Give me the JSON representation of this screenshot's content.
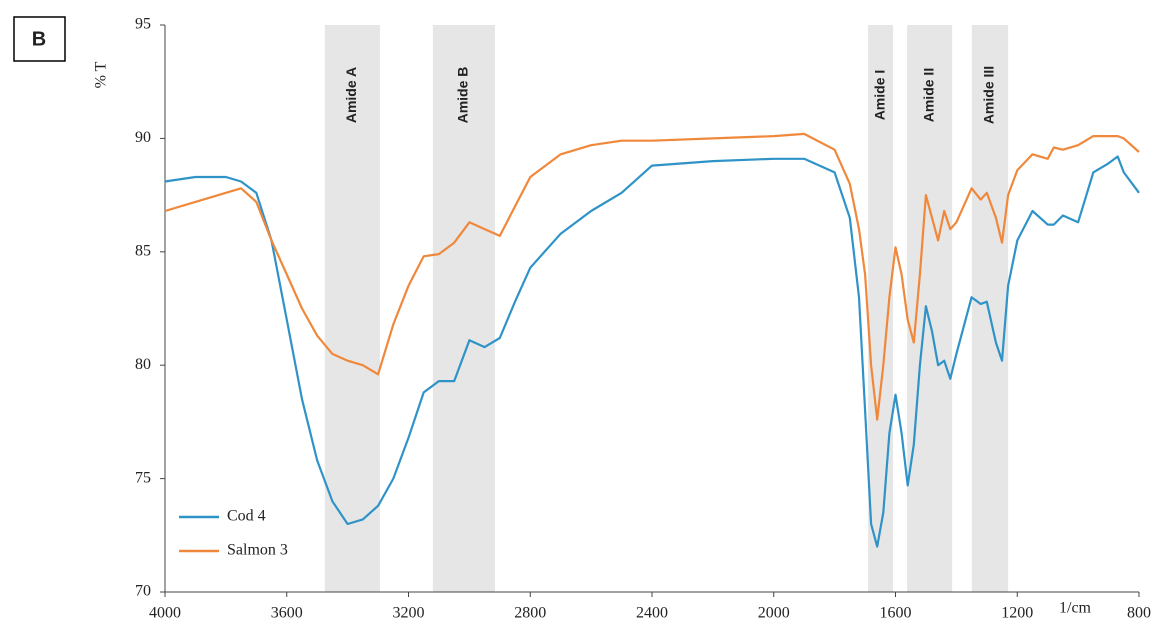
{
  "panel_label": "B",
  "chart_data": {
    "type": "line",
    "y_label": "% T",
    "x_label": "1/cm",
    "xlim": [
      4000,
      800
    ],
    "xticks": [
      4000,
      3600,
      3200,
      2800,
      2400,
      2000,
      1600,
      1200,
      800
    ],
    "ylim": [
      70,
      95
    ],
    "yticks": [
      70,
      75,
      80,
      85,
      90,
      95
    ],
    "legend": "lower left",
    "bands": [
      {
        "label": "Amide A",
        "range": [
          3475,
          3294
        ]
      },
      {
        "label": "Amide B",
        "range": [
          3120,
          2916
        ]
      },
      {
        "label": "Amide I",
        "range": [
          1690,
          1608
        ]
      },
      {
        "label": "Amide II",
        "range": [
          1562,
          1414
        ]
      },
      {
        "label": "Amide III",
        "range": [
          1349,
          1230
        ]
      }
    ],
    "x": [
      4000,
      3900,
      3800,
      3750,
      3700,
      3650,
      3600,
      3550,
      3500,
      3450,
      3400,
      3350,
      3300,
      3250,
      3200,
      3150,
      3100,
      3050,
      3000,
      2950,
      2900,
      2850,
      2800,
      2700,
      2600,
      2500,
      2400,
      2200,
      2000,
      1900,
      1800,
      1750,
      1720,
      1700,
      1680,
      1660,
      1640,
      1620,
      1600,
      1580,
      1560,
      1540,
      1520,
      1500,
      1480,
      1460,
      1440,
      1420,
      1400,
      1350,
      1320,
      1300,
      1270,
      1250,
      1230,
      1200,
      1150,
      1100,
      1080,
      1050,
      1000,
      950,
      900,
      870,
      850,
      800
    ],
    "series": [
      {
        "name": "Cod 4",
        "color": "#2f93c8",
        "values": [
          88.1,
          88.3,
          88.3,
          88.1,
          87.6,
          85.5,
          82,
          78.5,
          75.8,
          74,
          73.0,
          73.2,
          73.8,
          75,
          76.8,
          78.8,
          79.3,
          79.3,
          81.1,
          80.8,
          81.2,
          82.8,
          84.3,
          85.8,
          86.8,
          87.6,
          88.8,
          89,
          89.1,
          89.1,
          88.5,
          86.5,
          83,
          78,
          73,
          72.0,
          73.5,
          77,
          78.7,
          77,
          74.7,
          76.5,
          80,
          82.6,
          81.5,
          80,
          80.2,
          79.4,
          80.5,
          83,
          82.7,
          82.8,
          81,
          80.2,
          83.5,
          85.5,
          86.8,
          86.2,
          86.2,
          86.6,
          86.3,
          88.5,
          88.9,
          89.2,
          88.5,
          87.6
        ]
      },
      {
        "name": "Salmon 3",
        "color": "#f0883c",
        "values": [
          86.8,
          87.2,
          87.6,
          87.8,
          87.2,
          85.5,
          84,
          82.5,
          81.3,
          80.5,
          80.2,
          80,
          79.6,
          81.8,
          83.5,
          84.8,
          84.9,
          85.4,
          86.3,
          86,
          85.7,
          87,
          88.3,
          89.3,
          89.7,
          89.9,
          89.9,
          90,
          90.1,
          90.2,
          89.5,
          88,
          86,
          84,
          80,
          77.6,
          80,
          83,
          85.2,
          84,
          82,
          81,
          84,
          87.5,
          86.5,
          85.5,
          86.8,
          86,
          86.3,
          87.8,
          87.3,
          87.6,
          86.5,
          85.4,
          87.5,
          88.6,
          89.3,
          89.1,
          89.6,
          89.5,
          89.7,
          90.1,
          90.1,
          90.1,
          90,
          89.4
        ]
      }
    ]
  }
}
